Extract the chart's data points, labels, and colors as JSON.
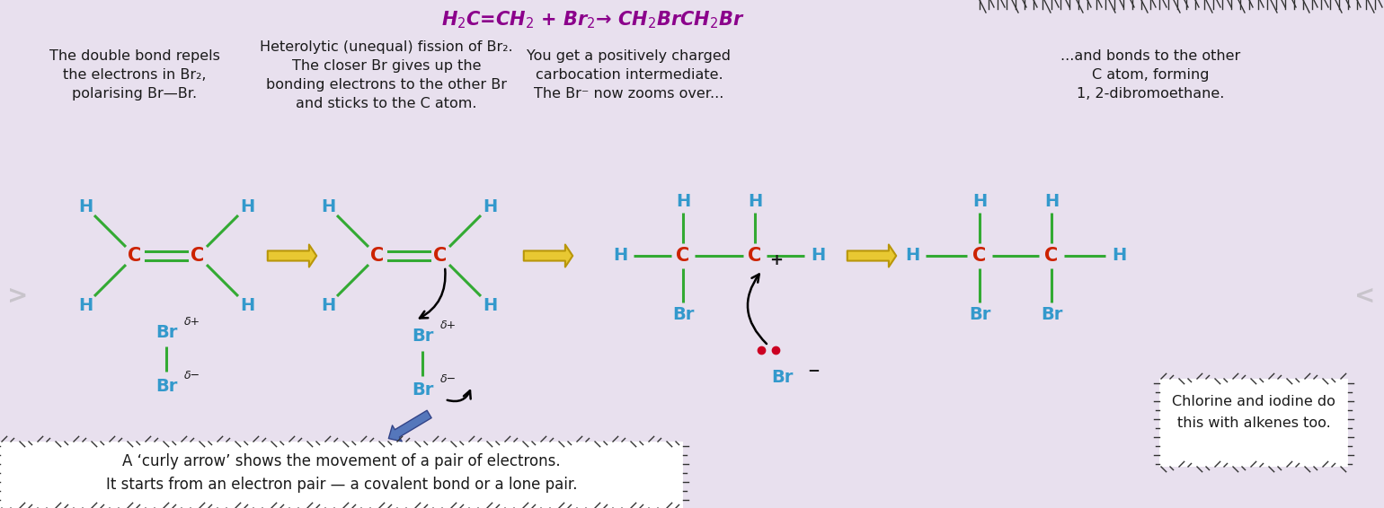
{
  "bg_color": "#e8e0ee",
  "title_color": "#8B008B",
  "title_fontsize": 15,
  "text_color": "#1a1a1a",
  "C_color": "#cc2200",
  "H_color": "#3399cc",
  "Br_color": "#3399cc",
  "bond_color": "#33aa33",
  "bond_color2": "#33aa33",
  "bond_width": 2.2,
  "desc1": "The double bond repels\nthe electrons in Br₂,\npolarising Br—Br.",
  "desc2": "Heterolytic (unequal) fission of Br₂.\nThe closer Br gives up the\nbonding electrons to the other Br\nand sticks to the C atom.",
  "desc3": "You get a positively charged\ncarbocation intermediate.\nThe Br⁻ now zooms over...",
  "desc4": "...and bonds to the other\nC atom, forming\n1, 2-dibromoethane.",
  "note_line1": "A ‘curly arrow’ shows the movement of a pair of electrons.",
  "note_line2": "It starts from an electron pair — a covalent bond or a lone pair.",
  "note2_line1": "Chlorine and iodine do",
  "note2_line2": "this with alkenes too.",
  "yellow_fc": "#e8c832",
  "yellow_ec": "#b8960a",
  "blue_arrow_fc": "#5577bb",
  "blue_arrow_ec": "#334488"
}
